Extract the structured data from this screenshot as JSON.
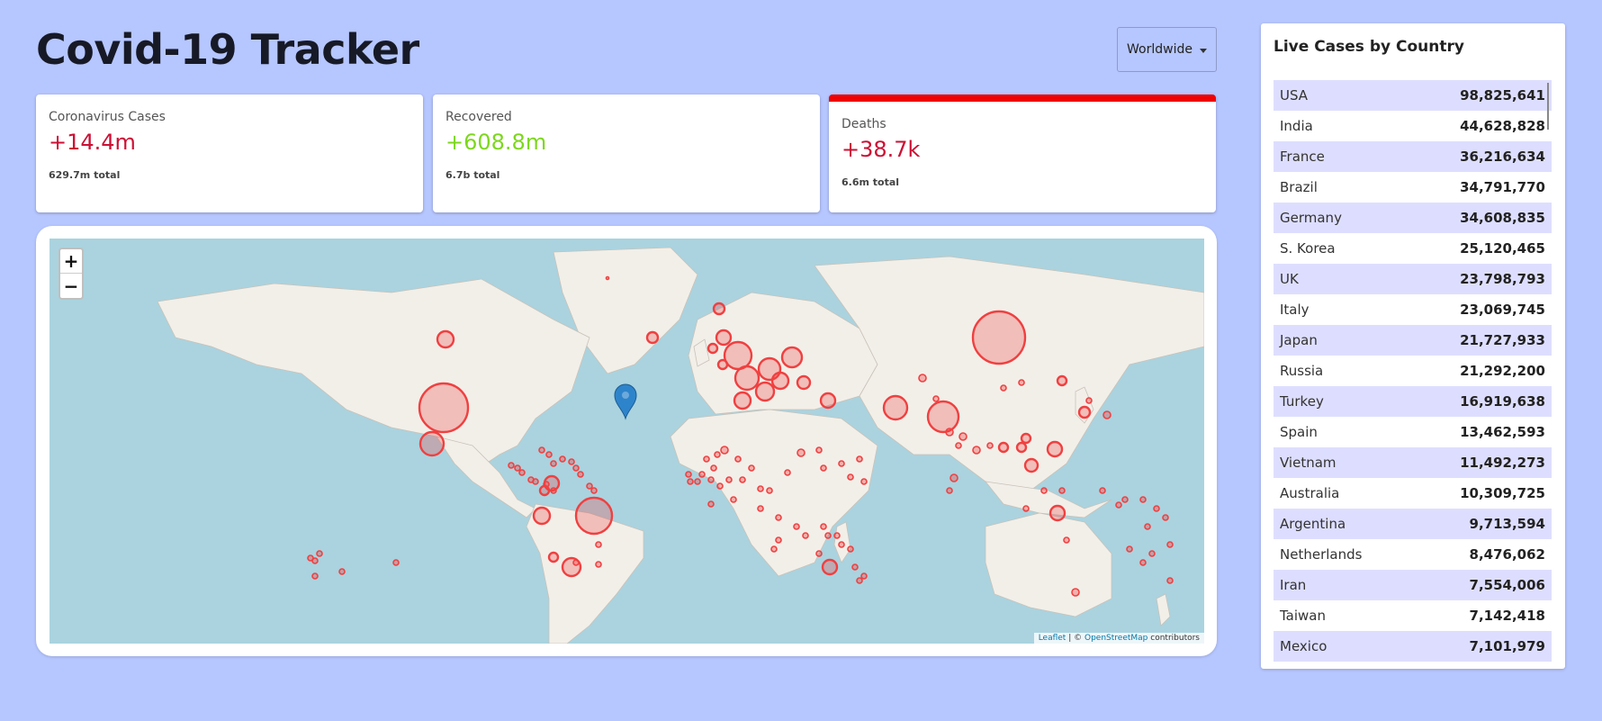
{
  "header": {
    "title": "Covid-19 Tracker"
  },
  "country_select": {
    "selected": "Worldwide"
  },
  "cards": [
    {
      "label": "Coronavirus Cases",
      "value": "+14.4m",
      "total": "629.7m total",
      "value_color": "#cc1034",
      "active": false
    },
    {
      "label": "Recovered",
      "value": "+608.8m",
      "total": "6.7b total",
      "value_color": "#7dd71d",
      "active": false
    },
    {
      "label": "Deaths",
      "value": "+38.7k",
      "total": "6.6m total",
      "value_color": "#cc1034",
      "active": true
    }
  ],
  "map": {
    "zoom_in": "+",
    "zoom_out": "−",
    "attribution": {
      "leaflet": "Leaflet",
      "sep": "| ©",
      "osm": "OpenStreetMap",
      "contributors": "contributors"
    },
    "circle_color": "#f04040",
    "marker_icon": "map-pin-icon"
  },
  "sidebar": {
    "title": "Live Cases by Country",
    "rows": [
      {
        "country": "USA",
        "cases": "98,825,641"
      },
      {
        "country": "India",
        "cases": "44,628,828"
      },
      {
        "country": "France",
        "cases": "36,216,634"
      },
      {
        "country": "Brazil",
        "cases": "34,791,770"
      },
      {
        "country": "Germany",
        "cases": "34,608,835"
      },
      {
        "country": "S. Korea",
        "cases": "25,120,465"
      },
      {
        "country": "UK",
        "cases": "23,798,793"
      },
      {
        "country": "Italy",
        "cases": "23,069,745"
      },
      {
        "country": "Japan",
        "cases": "21,727,933"
      },
      {
        "country": "Russia",
        "cases": "21,292,200"
      },
      {
        "country": "Turkey",
        "cases": "16,919,638"
      },
      {
        "country": "Spain",
        "cases": "13,462,593"
      },
      {
        "country": "Vietnam",
        "cases": "11,492,273"
      },
      {
        "country": "Australia",
        "cases": "10,309,725"
      },
      {
        "country": "Argentina",
        "cases": "9,713,594"
      },
      {
        "country": "Netherlands",
        "cases": "8,476,062"
      },
      {
        "country": "Iran",
        "cases": "7,554,006"
      },
      {
        "country": "Taiwan",
        "cases": "7,142,418"
      },
      {
        "country": "Mexico",
        "cases": "7,101,979"
      }
    ]
  }
}
